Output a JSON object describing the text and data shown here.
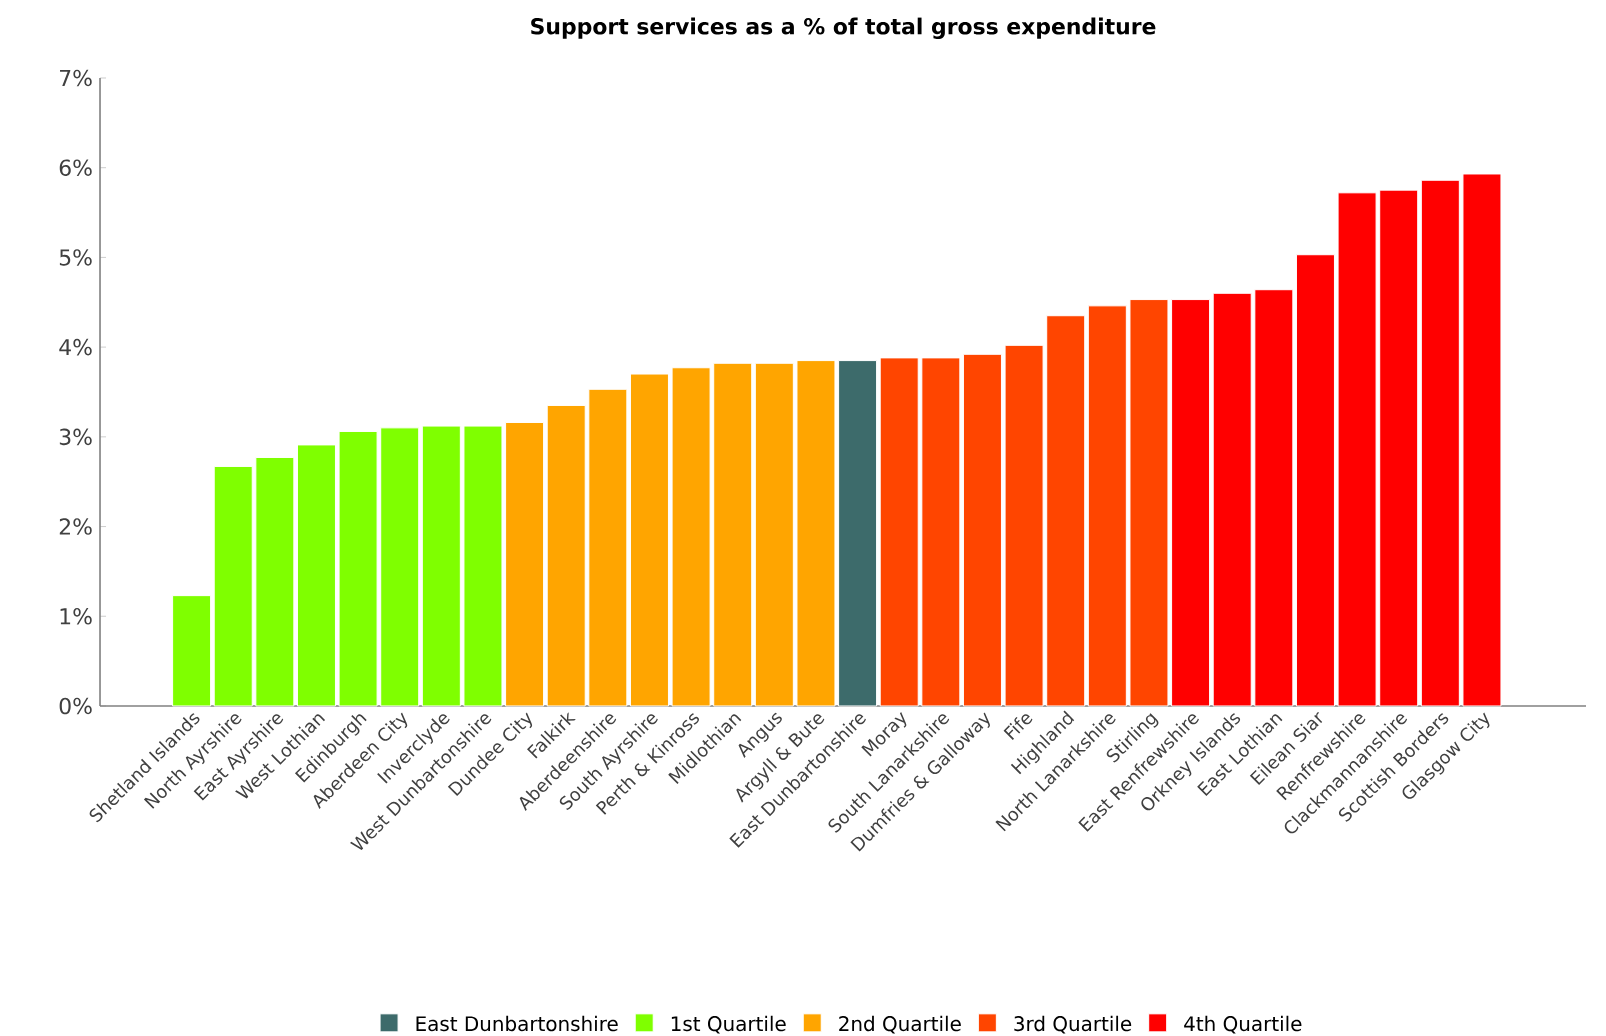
{
  "chart_data": {
    "type": "bar",
    "title": "Support services as a % of total gross expenditure",
    "categories": [
      "Shetland Islands",
      "North Ayrshire",
      "East Ayrshire",
      "West Lothian",
      "Edinburgh",
      "Aberdeen City",
      "Inverclyde",
      "West Dunbartonshire",
      "Dundee City",
      "Falkirk",
      "Aberdeenshire",
      "South Ayrshire",
      "Perth & Kinross",
      "Midlothian",
      "Angus",
      "Argyll & Bute",
      "East Dunbartonshire",
      "Moray",
      "South Lanarkshire",
      "Dumfries & Galloway",
      "Fife",
      "Highland",
      "North Lanarkshire",
      "Stirling",
      "East Renfrewshire",
      "Orkney Islands",
      "East Lothian",
      "Eilean Siar",
      "Renfrewshire",
      "Clackmannanshire",
      "Scottish Borders",
      "Glasgow City"
    ],
    "series": [
      {
        "name": "East Dunbartonshire",
        "color": "#3d6b6b",
        "values": [
          null,
          null,
          null,
          null,
          null,
          null,
          null,
          null,
          null,
          null,
          null,
          null,
          null,
          null,
          null,
          null,
          3.85,
          null,
          null,
          null,
          null,
          null,
          null,
          null,
          null,
          null,
          null,
          null,
          null,
          null,
          null,
          null
        ]
      },
      {
        "name": "1st Quartile",
        "color": "#7fff00",
        "values": [
          1.23,
          2.67,
          2.77,
          2.91,
          3.06,
          3.1,
          3.12,
          3.12,
          null,
          null,
          null,
          null,
          null,
          null,
          null,
          null,
          null,
          null,
          null,
          null,
          null,
          null,
          null,
          null,
          null,
          null,
          null,
          null,
          null,
          null,
          null,
          null
        ]
      },
      {
        "name": "2nd Quartile",
        "color": "#ffa500",
        "values": [
          null,
          null,
          null,
          null,
          null,
          null,
          null,
          null,
          3.16,
          3.35,
          3.53,
          3.7,
          3.77,
          3.82,
          3.82,
          3.85,
          null,
          null,
          null,
          null,
          null,
          null,
          null,
          null,
          null,
          null,
          null,
          null,
          null,
          null,
          null,
          null
        ]
      },
      {
        "name": "3rd Quartile",
        "color": "#ff4500",
        "values": [
          null,
          null,
          null,
          null,
          null,
          null,
          null,
          null,
          null,
          null,
          null,
          null,
          null,
          null,
          null,
          null,
          null,
          3.88,
          3.88,
          3.92,
          4.02,
          4.35,
          4.46,
          4.53,
          null,
          null,
          null,
          null,
          null,
          null,
          null,
          null
        ]
      },
      {
        "name": "4th Quartile",
        "color": "#ff0000",
        "values": [
          null,
          null,
          null,
          null,
          null,
          null,
          null,
          null,
          null,
          null,
          null,
          null,
          null,
          null,
          null,
          null,
          null,
          null,
          null,
          null,
          null,
          null,
          null,
          null,
          4.53,
          4.6,
          4.64,
          5.03,
          5.72,
          5.75,
          5.86,
          5.93
        ]
      }
    ],
    "ylim": [
      0,
      7
    ],
    "yticks": [
      {
        "value": 0,
        "label": "0%"
      },
      {
        "value": 1,
        "label": "1%"
      },
      {
        "value": 2,
        "label": "2%"
      },
      {
        "value": 3,
        "label": "3%"
      },
      {
        "value": 4,
        "label": "4%"
      },
      {
        "value": 5,
        "label": "5%"
      },
      {
        "value": 6,
        "label": "6%"
      },
      {
        "value": 7,
        "label": "7%"
      }
    ],
    "legend": "bottom"
  }
}
